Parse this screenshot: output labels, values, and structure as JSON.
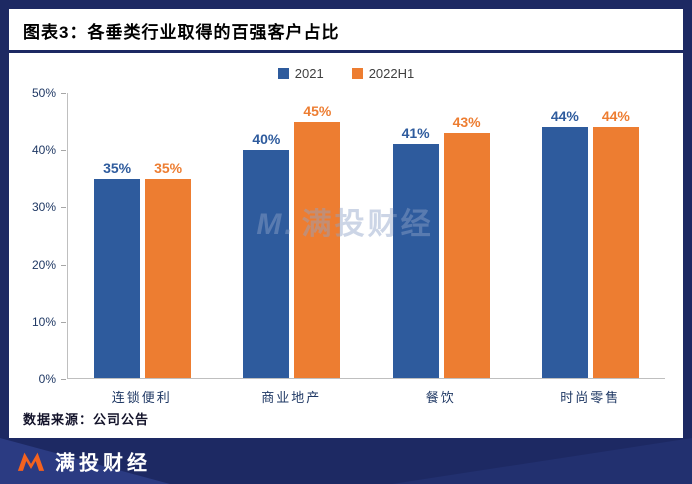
{
  "title": "图表3：各垂类行业取得的百强客户占比",
  "source": "数据来源：公司公告",
  "watermark": {
    "mark": "M.",
    "text": "满投财经"
  },
  "footer": {
    "brand": "满投财经"
  },
  "colors": {
    "frame_navy": "#1D2963",
    "bar_2021": "#2E5B9D",
    "bar_2022h1": "#ED7D31",
    "axis_text": "#1F3864"
  },
  "chart_data": {
    "type": "bar",
    "title": "图表3：各垂类行业取得的百强客户占比",
    "categories": [
      "连锁便利",
      "商业地产",
      "餐饮",
      "时尚零售"
    ],
    "series": [
      {
        "name": "2021",
        "color": "#2E5B9D",
        "values": [
          35,
          40,
          41,
          44
        ]
      },
      {
        "name": "2022H1",
        "color": "#ED7D31",
        "values": [
          35,
          45,
          43,
          44
        ]
      }
    ],
    "unit": "%",
    "ylim": [
      0,
      50
    ],
    "yticks": [
      "0%",
      "10%",
      "20%",
      "30%",
      "40%",
      "50%"
    ],
    "grid": false,
    "legend_position": "top",
    "data_labels": true
  }
}
